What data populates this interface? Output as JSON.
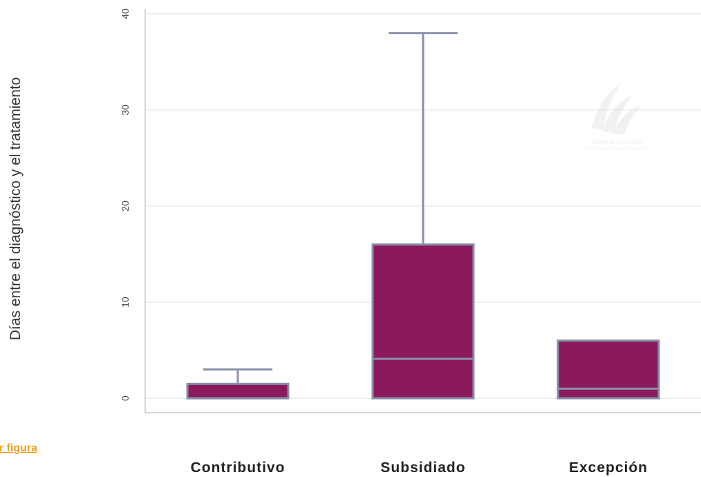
{
  "download_link": "ar figura",
  "watermark": {
    "line1": "CUENTA DE ALTO COSTO",
    "line2": "Fondo colombiano de enfermedades de alto costo"
  },
  "chart_data": {
    "type": "box",
    "ylabel": "Días entre el diagnóstico y el tratamiento",
    "xlabel": "",
    "title": "",
    "ylim": [
      -1.5,
      40.5
    ],
    "yticks": [
      0,
      10,
      20,
      30,
      40
    ],
    "categories": [
      "Contributivo",
      "Subsidiado",
      "Excepción"
    ],
    "series": [
      {
        "category": "Contributivo",
        "min": 0,
        "q1": 0,
        "median": 0,
        "q3": 1.5,
        "max": 3
      },
      {
        "category": "Subsidiado",
        "min": 0,
        "q1": 0,
        "median": 4.1,
        "q3": 16,
        "max": 38
      },
      {
        "category": "Excepción",
        "min": 0,
        "q1": 0,
        "median": 1,
        "q3": 6,
        "max": 6
      }
    ],
    "grid": true,
    "colors": {
      "box_fill": "#8b1a5c",
      "box_stroke": "#8891a8",
      "grid": "#e4e6ea",
      "axis": "#c7cad2"
    }
  }
}
